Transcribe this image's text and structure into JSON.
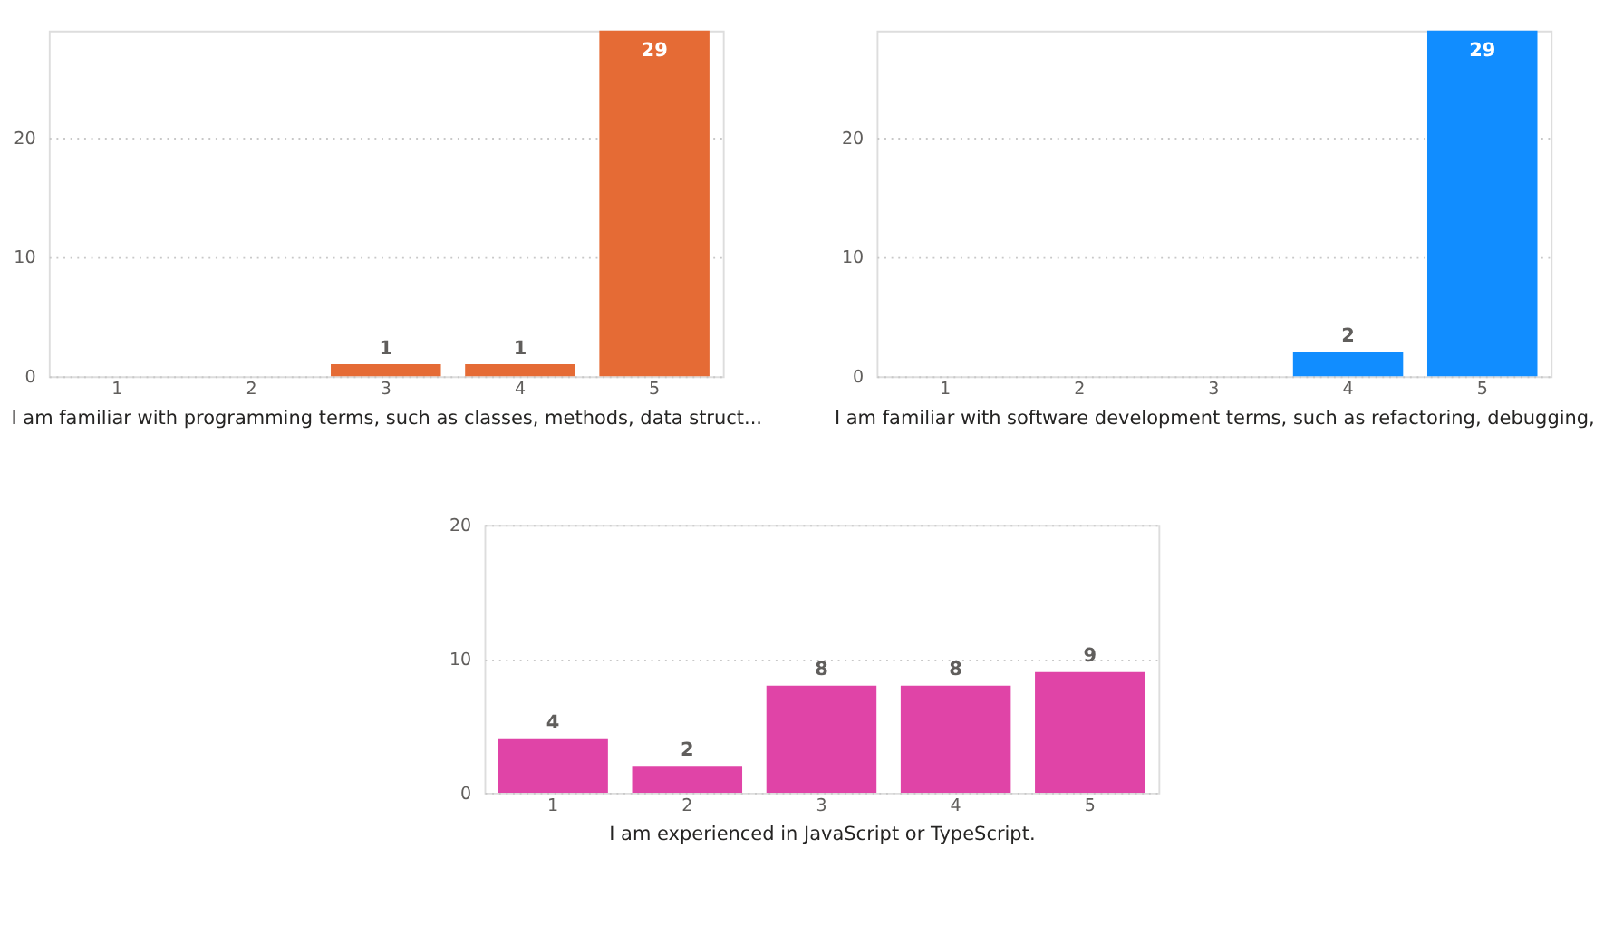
{
  "chart_data": [
    {
      "type": "bar",
      "categories": [
        "1",
        "2",
        "3",
        "4",
        "5"
      ],
      "values": [
        0,
        0,
        1,
        1,
        29
      ],
      "value_labels": [
        null,
        null,
        "1",
        "1",
        "29"
      ],
      "color": "#e56b35",
      "xlabel": "I am familiar with programming terms, such as classes, methods, data struct...",
      "ylim": [
        0,
        29
      ],
      "yticks": [
        0,
        10,
        20
      ],
      "grid": "y"
    },
    {
      "type": "bar",
      "categories": [
        "1",
        "2",
        "3",
        "4",
        "5"
      ],
      "values": [
        0,
        0,
        0,
        2,
        29
      ],
      "value_labels": [
        null,
        null,
        null,
        "2",
        "29"
      ],
      "color": "#118dff",
      "xlabel": "I am familiar with software development terms, such as refactoring, debugging,",
      "ylim": [
        0,
        29
      ],
      "yticks": [
        0,
        10,
        20
      ],
      "grid": "y"
    },
    {
      "type": "bar",
      "categories": [
        "1",
        "2",
        "3",
        "4",
        "5"
      ],
      "values": [
        4,
        2,
        8,
        8,
        9
      ],
      "data_labels": true,
      "color": "#e044a7",
      "xlabel": "I am experienced in JavaScript or TypeScript.",
      "ylim": [
        0,
        20
      ],
      "yticks": [
        0,
        10,
        20
      ],
      "grid": "y"
    }
  ]
}
